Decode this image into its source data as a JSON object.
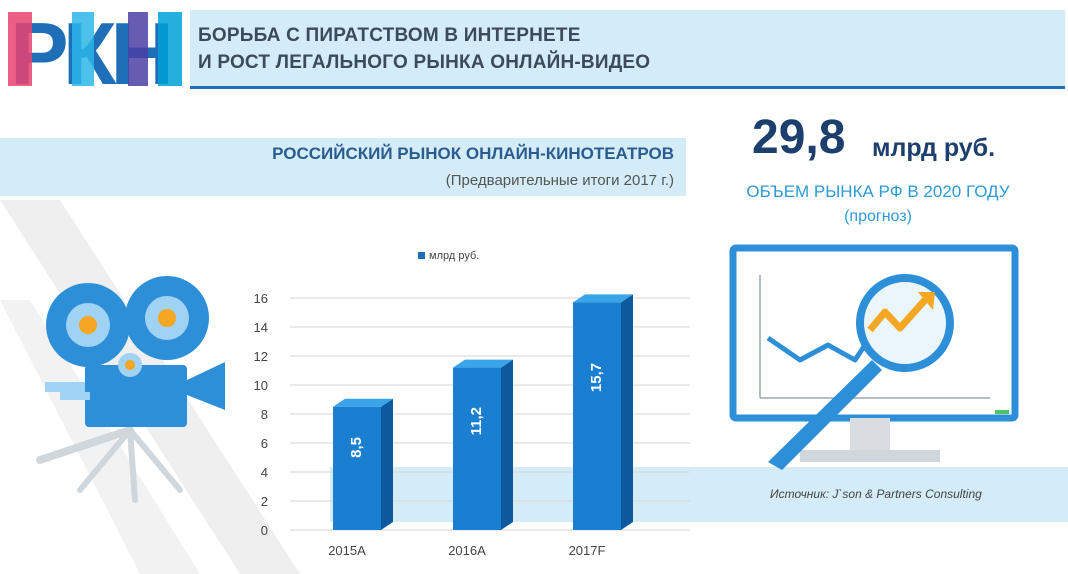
{
  "header": {
    "logo_text": "РКН",
    "title_line1": "БОРЬБА С ПИРАТСТВОМ В ИНТЕРНЕТЕ",
    "title_line2": "И РОСТ ЛЕГАЛЬНОГО РЫНКА ОНЛАЙН-ВИДЕО"
  },
  "section": {
    "title": "РОССИЙСКИЙ РЫНОК ОНЛАЙН-КИНОТЕАТРОВ",
    "subtitle": "(Предварительные итоги 2017 г.)"
  },
  "forecast": {
    "value": "29,8",
    "unit": "млрд руб.",
    "label": "ОБЪЕМ РЫНКА РФ В 2020 ГОДУ",
    "note": "(прогноз)"
  },
  "source": "Источник: J`son & Partners Consulting",
  "icons": [
    "film-camera-icon",
    "monitor-chart-icon",
    "magnifier-icon",
    "trend-arrow-icon"
  ],
  "colors": {
    "accent": "#1f6fb8",
    "light_band": "#d3ecf8",
    "bar": "#1a7fd0"
  },
  "chart_data": {
    "type": "bar",
    "categories": [
      "2015A",
      "2016A",
      "2017F"
    ],
    "values": [
      8.5,
      11.2,
      15.7
    ],
    "value_labels": [
      "8,5",
      "11,2",
      "15,7"
    ],
    "series": [
      {
        "name": "млрд руб.",
        "values": [
          8.5,
          11.2,
          15.7
        ]
      }
    ],
    "ylim": [
      0,
      16
    ],
    "yticks": [
      0,
      2,
      4,
      6,
      8,
      10,
      12,
      14,
      16
    ],
    "grid": true,
    "legend": "top"
  }
}
